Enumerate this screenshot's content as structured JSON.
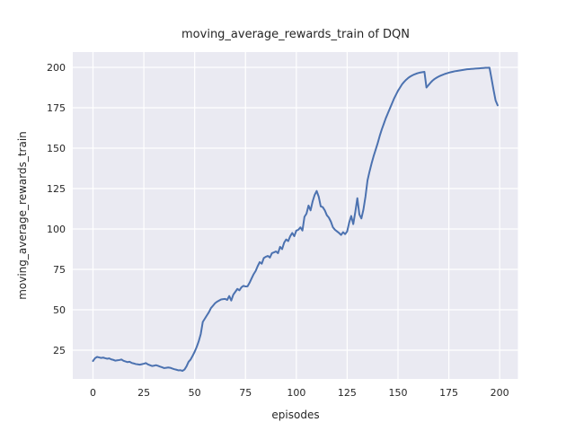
{
  "window": {
    "kind": "matplotlib-figure",
    "background_color": "#ffffff"
  },
  "chart_data": {
    "type": "line",
    "title": "moving_average_rewards_train of DQN",
    "xlabel": "episodes",
    "ylabel": "moving_average_rewards_train",
    "x_is_index": true,
    "x": "episode index 0..199",
    "values": [
      18.3,
      20.0,
      20.8,
      20.5,
      20.2,
      20.4,
      20.0,
      19.7,
      19.9,
      19.3,
      19.0,
      18.5,
      18.7,
      18.9,
      19.2,
      18.4,
      18.0,
      17.6,
      17.8,
      17.1,
      16.8,
      16.4,
      16.2,
      16.0,
      16.3,
      16.6,
      17.0,
      16.2,
      15.7,
      15.2,
      15.4,
      15.7,
      15.3,
      14.8,
      14.4,
      13.9,
      14.1,
      14.3,
      14.1,
      13.6,
      13.2,
      12.9,
      12.5,
      12.6,
      12.2,
      13.0,
      15.0,
      17.8,
      19.2,
      21.5,
      24.0,
      27.0,
      30.5,
      35.0,
      42.5,
      44.5,
      46.5,
      48.5,
      51.0,
      52.5,
      54.0,
      55.0,
      55.7,
      56.4,
      56.6,
      56.7,
      56.1,
      58.5,
      55.7,
      59.3,
      61.1,
      62.9,
      62.0,
      63.9,
      64.8,
      64.4,
      64.5,
      66.7,
      69.4,
      72.0,
      74.0,
      77.0,
      79.5,
      78.5,
      82.0,
      82.8,
      83.3,
      82.3,
      85.0,
      85.5,
      86.1,
      85.0,
      88.9,
      87.5,
      91.5,
      93.5,
      92.5,
      95.5,
      97.5,
      95.5,
      99.0,
      99.5,
      101.0,
      99.0,
      107.5,
      109.5,
      114.5,
      111.5,
      117.0,
      121.0,
      123.5,
      120.0,
      114.0,
      113.5,
      111.5,
      108.5,
      107.0,
      104.5,
      101.0,
      99.5,
      98.5,
      97.5,
      96.3,
      98.0,
      96.8,
      98.5,
      104.0,
      108.0,
      103.0,
      110.5,
      119.0,
      109.0,
      106.5,
      112.0,
      120.0,
      130.0,
      135.5,
      140.5,
      145.0,
      149.0,
      153.0,
      157.5,
      161.5,
      165.0,
      168.5,
      171.5,
      174.5,
      177.5,
      180.5,
      183.0,
      185.5,
      187.5,
      189.5,
      191.0,
      192.3,
      193.4,
      194.3,
      195.0,
      195.6,
      196.1,
      196.5,
      196.8,
      197.0,
      197.2,
      187.5,
      189.0,
      190.5,
      191.8,
      192.8,
      193.6,
      194.3,
      194.9,
      195.4,
      195.9,
      196.3,
      196.7,
      197.0,
      197.3,
      197.6,
      197.8,
      198.0,
      198.2,
      198.4,
      198.6,
      198.8,
      198.9,
      199.0,
      199.1,
      199.2,
      199.3,
      199.4,
      199.5,
      199.6,
      199.7,
      199.75,
      199.8,
      193.0,
      186.0,
      179.5,
      176.5
    ],
    "xlim": [
      -9.95,
      208.95
    ],
    "ylim": [
      7.2,
      209.44
    ],
    "x_ticks": [
      0,
      25,
      50,
      75,
      100,
      125,
      150,
      175,
      200
    ],
    "y_ticks": [
      25,
      50,
      75,
      100,
      125,
      150,
      175,
      200
    ],
    "grid": true,
    "legend": "none",
    "style": {
      "line_color": "#4C72B0",
      "line_width": 2,
      "plot_bg_color": "#EAEAF2",
      "grid_color": "#ffffff",
      "text_color": "#262626",
      "tick_font_size": 11
    }
  }
}
